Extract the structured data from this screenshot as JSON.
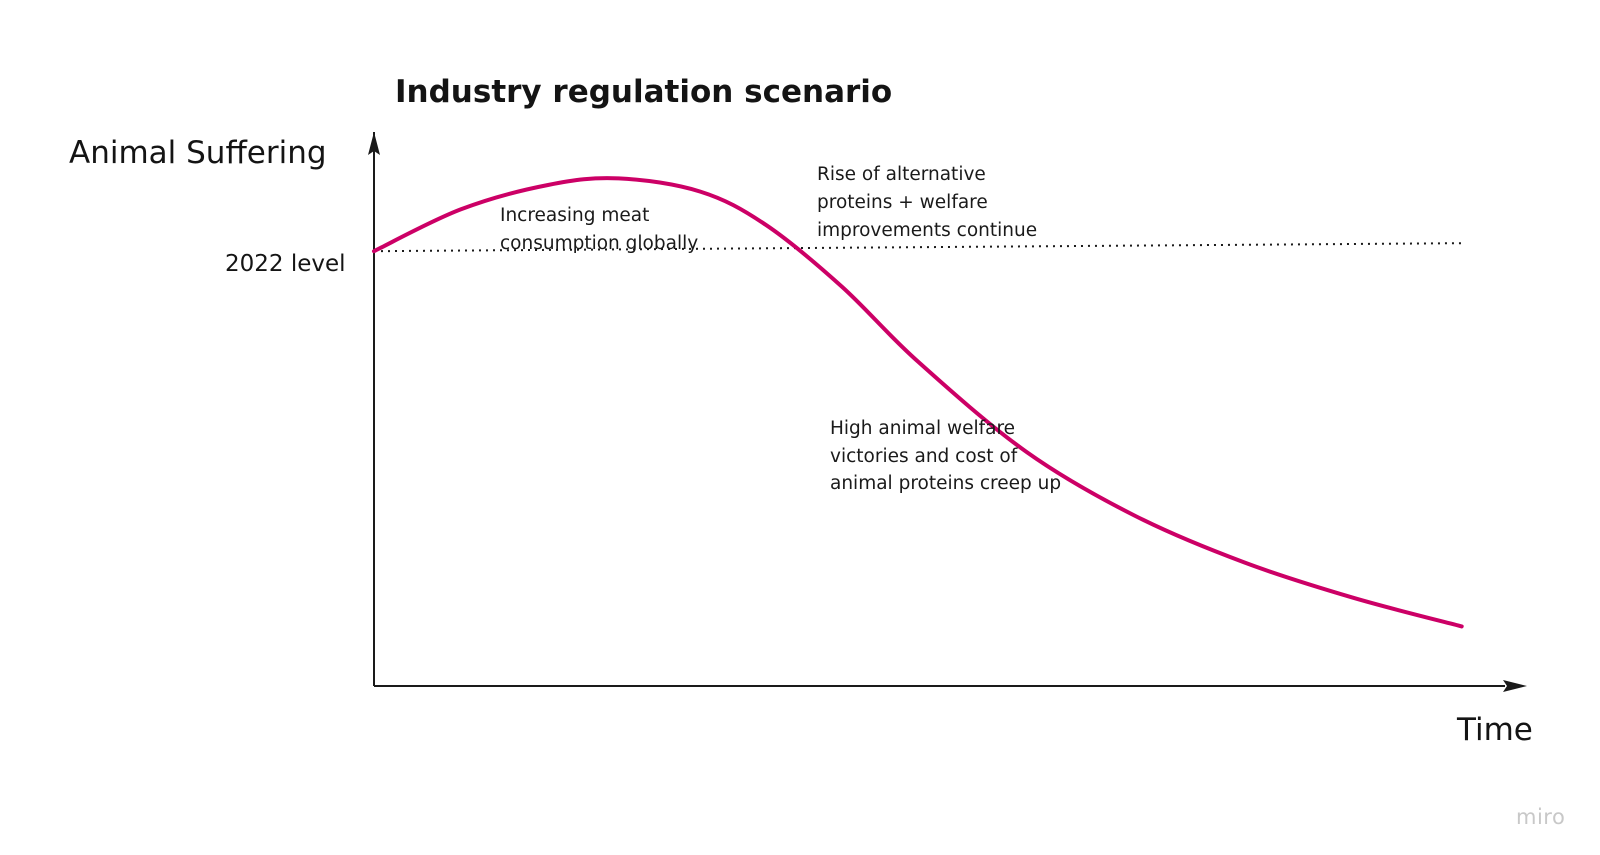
{
  "chart_data": {
    "type": "line",
    "title": "Industry regulation scenario",
    "ylabel": "Animal Suffering",
    "xlabel": "Time",
    "reference_line": {
      "label": "2022 level",
      "style": "dotted",
      "value": 1.0
    },
    "x": [
      0,
      0.08,
      0.16,
      0.225,
      0.3,
      0.36,
      0.43,
      0.5,
      0.6,
      0.7,
      0.8,
      0.9,
      1.0
    ],
    "series": [
      {
        "values": [
          1.0,
          1.19,
          1.3,
          1.33,
          1.27,
          1.12,
          0.84,
          0.5,
          0.09,
          -0.2,
          -0.41,
          -0.57,
          -0.7
        ],
        "color": "#cc0066"
      }
    ],
    "xlim": [
      0,
      1.06
    ],
    "ylim": [
      -0.97,
      1.54
    ],
    "grid": false,
    "legend": "none",
    "annotations": [
      {
        "id": "annotation-1",
        "lines": [
          "Increasing meat",
          "consumption globally"
        ]
      },
      {
        "id": "annotation-2",
        "lines": [
          "Rise of alternative",
          "proteins + welfare",
          "improvements continue"
        ]
      },
      {
        "id": "annotation-3",
        "lines": [
          "High animal welfare",
          "victories and cost of",
          "animal proteins creep up"
        ]
      }
    ]
  },
  "watermark": "miro",
  "colors": {
    "curve": "#cc0066",
    "axis": "#1a1a1a",
    "reference_line": "#1a1a1a",
    "watermark": "#c8c8c8"
  }
}
